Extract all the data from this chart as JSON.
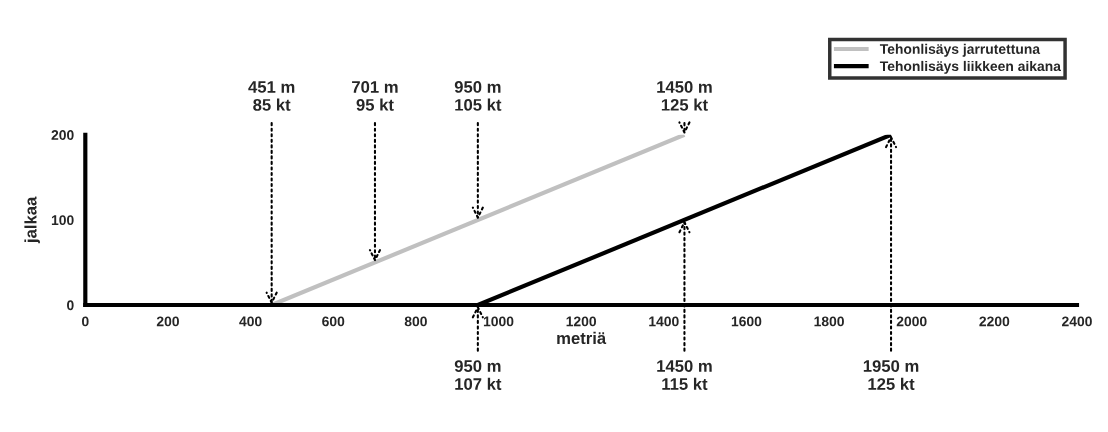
{
  "chart_data": {
    "type": "line",
    "xlabel": "metriä",
    "ylabel": "jalkaa",
    "xlim": [
      0,
      2400
    ],
    "xticks": [
      0,
      200,
      400,
      600,
      800,
      1000,
      1200,
      1400,
      1600,
      1800,
      2000,
      2200,
      2400
    ],
    "ylim": [
      0,
      200
    ],
    "yticks": [
      0,
      100,
      200
    ],
    "grid": false,
    "legend": "top right",
    "marker": "none",
    "line_style": "solid",
    "series": [
      {
        "name": "Tehonlisäys jarrutettuna",
        "color": "#c0c0c0",
        "x": [
          451,
          1450
        ],
        "values": [
          0,
          200
        ]
      },
      {
        "name": "Tehonlisäys liikkeen aikana",
        "color": "#000000",
        "x": [
          950,
          1950
        ],
        "values": [
          0,
          200
        ]
      }
    ],
    "annotations": [
      {
        "text": "451 m\n85 kt",
        "x": 451,
        "y": 0
      },
      {
        "text": "701 m\n95 kt",
        "x": 701,
        "y": 50
      },
      {
        "text": "950 m\n105 kt",
        "x": 950,
        "y": 100
      },
      {
        "text": "1450 m\n125 kt",
        "x": 1450,
        "y": 200
      },
      {
        "text": "950 m\n107 kt",
        "x": 950,
        "y": 0
      },
      {
        "text": "1450 m\n115 kt",
        "x": 1450,
        "y": 100
      },
      {
        "text": "1950 m\n125 kt",
        "x": 1950,
        "y": 200
      }
    ]
  }
}
